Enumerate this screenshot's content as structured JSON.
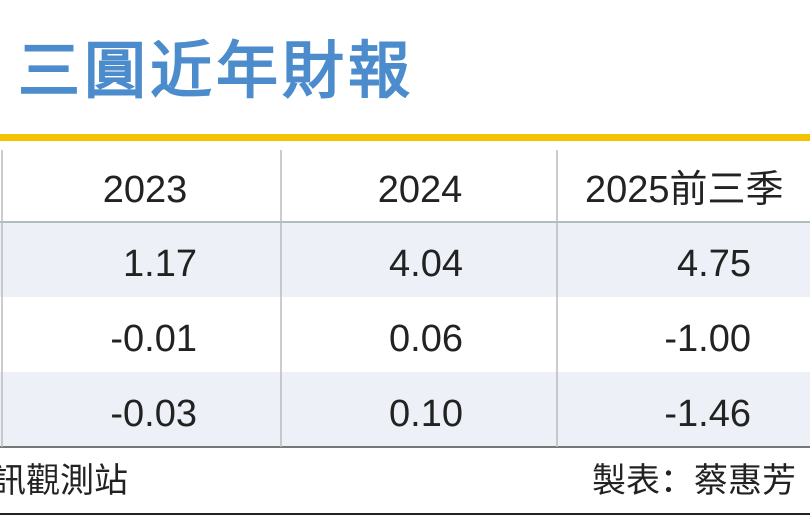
{
  "title": "三圓近年財報",
  "table": {
    "header": [
      "2023",
      "2024",
      "2025前三季"
    ],
    "rows": [
      [
        "1.17",
        "4.04",
        "4.75"
      ],
      [
        "-0.01",
        "0.06",
        "-1.00"
      ],
      [
        "-0.03",
        "0.10",
        "-1.46"
      ]
    ]
  },
  "footer": {
    "source": "訊觀測站",
    "author": "製表：蔡惠芳"
  }
}
